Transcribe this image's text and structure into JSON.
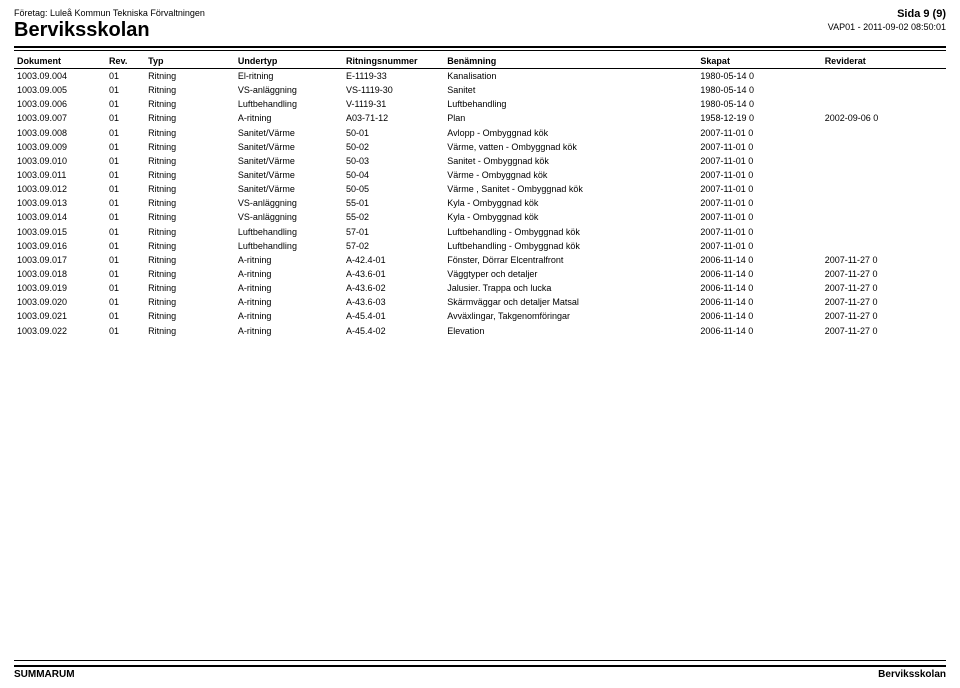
{
  "header": {
    "company": "Företag: Luleå Kommun Tekniska Förvaltningen",
    "title": "Berviksskolan",
    "page_label": "Sida 9 (9)",
    "stamp": "VAP01 - 2011-09-02 08:50:01"
  },
  "columns": {
    "doc": "Dokument",
    "rev": "Rev.",
    "typ": "Typ",
    "undertyp": "Undertyp",
    "ritnum": "Ritningsnummer",
    "benamning": "Benämning",
    "skapat": "Skapat",
    "reviderat": "Reviderat"
  },
  "rows": [
    {
      "doc": "1003.09.004",
      "rev": "01",
      "typ": "Ritning",
      "utyp": "El-ritning",
      "rnum": "E-1119-33",
      "ben": "Kanalisation",
      "skap": "1980-05-14 0",
      "revd": ""
    },
    {
      "doc": "1003.09.005",
      "rev": "01",
      "typ": "Ritning",
      "utyp": "VS-anläggning",
      "rnum": "VS-1119-30",
      "ben": "Sanitet",
      "skap": "1980-05-14 0",
      "revd": ""
    },
    {
      "doc": "1003.09.006",
      "rev": "01",
      "typ": "Ritning",
      "utyp": "Luftbehandling",
      "rnum": "V-1119-31",
      "ben": "Luftbehandling",
      "skap": "1980-05-14 0",
      "revd": ""
    },
    {
      "doc": "1003.09.007",
      "rev": "01",
      "typ": "Ritning",
      "utyp": "A-ritning",
      "rnum": "A03-71-12",
      "ben": "Plan",
      "skap": "1958-12-19 0",
      "revd": "2002-09-06 0"
    },
    {
      "doc": "1003.09.008",
      "rev": "01",
      "typ": "Ritning",
      "utyp": "Sanitet/Värme",
      "rnum": "50-01",
      "ben": "Avlopp - Ombyggnad kök",
      "skap": "2007-11-01 0",
      "revd": ""
    },
    {
      "doc": "1003.09.009",
      "rev": "01",
      "typ": "Ritning",
      "utyp": "Sanitet/Värme",
      "rnum": "50-02",
      "ben": "Värme, vatten - Ombyggnad kök",
      "skap": "2007-11-01 0",
      "revd": ""
    },
    {
      "doc": "1003.09.010",
      "rev": "01",
      "typ": "Ritning",
      "utyp": "Sanitet/Värme",
      "rnum": "50-03",
      "ben": "Sanitet - Ombyggnad kök",
      "skap": "2007-11-01 0",
      "revd": ""
    },
    {
      "doc": "1003.09.011",
      "rev": "01",
      "typ": "Ritning",
      "utyp": "Sanitet/Värme",
      "rnum": "50-04",
      "ben": "Värme - Ombyggnad kök",
      "skap": "2007-11-01 0",
      "revd": ""
    },
    {
      "doc": "1003.09.012",
      "rev": "01",
      "typ": "Ritning",
      "utyp": "Sanitet/Värme",
      "rnum": "50-05",
      "ben": "Värme , Sanitet - Ombyggnad kök",
      "skap": "2007-11-01 0",
      "revd": ""
    },
    {
      "doc": "1003.09.013",
      "rev": "01",
      "typ": "Ritning",
      "utyp": "VS-anläggning",
      "rnum": "55-01",
      "ben": "Kyla - Ombyggnad kök",
      "skap": "2007-11-01 0",
      "revd": ""
    },
    {
      "doc": "1003.09.014",
      "rev": "01",
      "typ": "Ritning",
      "utyp": "VS-anläggning",
      "rnum": "55-02",
      "ben": "Kyla - Ombyggnad kök",
      "skap": "2007-11-01 0",
      "revd": ""
    },
    {
      "doc": "1003.09.015",
      "rev": "01",
      "typ": "Ritning",
      "utyp": "Luftbehandling",
      "rnum": "57-01",
      "ben": "Luftbehandling - Ombyggnad kök",
      "skap": "2007-11-01 0",
      "revd": ""
    },
    {
      "doc": "1003.09.016",
      "rev": "01",
      "typ": "Ritning",
      "utyp": "Luftbehandling",
      "rnum": "57-02",
      "ben": "Luftbehandling - Ombyggnad kök",
      "skap": "2007-11-01 0",
      "revd": ""
    },
    {
      "doc": "1003.09.017",
      "rev": "01",
      "typ": "Ritning",
      "utyp": "A-ritning",
      "rnum": "A-42.4-01",
      "ben": "Fönster, Dörrar Elcentralfront",
      "skap": "2006-11-14 0",
      "revd": "2007-11-27 0"
    },
    {
      "doc": "1003.09.018",
      "rev": "01",
      "typ": "Ritning",
      "utyp": "A-ritning",
      "rnum": "A-43.6-01",
      "ben": "Väggtyper och detaljer",
      "skap": "2006-11-14 0",
      "revd": "2007-11-27 0"
    },
    {
      "doc": "1003.09.019",
      "rev": "01",
      "typ": "Ritning",
      "utyp": "A-ritning",
      "rnum": "A-43.6-02",
      "ben": "Jalusier. Trappa och lucka",
      "skap": "2006-11-14 0",
      "revd": "2007-11-27 0"
    },
    {
      "doc": "1003.09.020",
      "rev": "01",
      "typ": "Ritning",
      "utyp": "A-ritning",
      "rnum": "A-43.6-03",
      "ben": "Skärmväggar och detaljer Matsal",
      "skap": "2006-11-14 0",
      "revd": "2007-11-27 0"
    },
    {
      "doc": "1003.09.021",
      "rev": "01",
      "typ": "Ritning",
      "utyp": "A-ritning",
      "rnum": "A-45.4-01",
      "ben": "Avväxlingar, Takgenomföringar",
      "skap": "2006-11-14 0",
      "revd": "2007-11-27 0"
    },
    {
      "doc": "1003.09.022",
      "rev": "01",
      "typ": "Ritning",
      "utyp": "A-ritning",
      "rnum": "A-45.4-02",
      "ben": "Elevation",
      "skap": "2006-11-14 0",
      "revd": "2007-11-27 0"
    }
  ],
  "footer": {
    "left": "SUMMARUM",
    "right": "Berviksskolan"
  }
}
